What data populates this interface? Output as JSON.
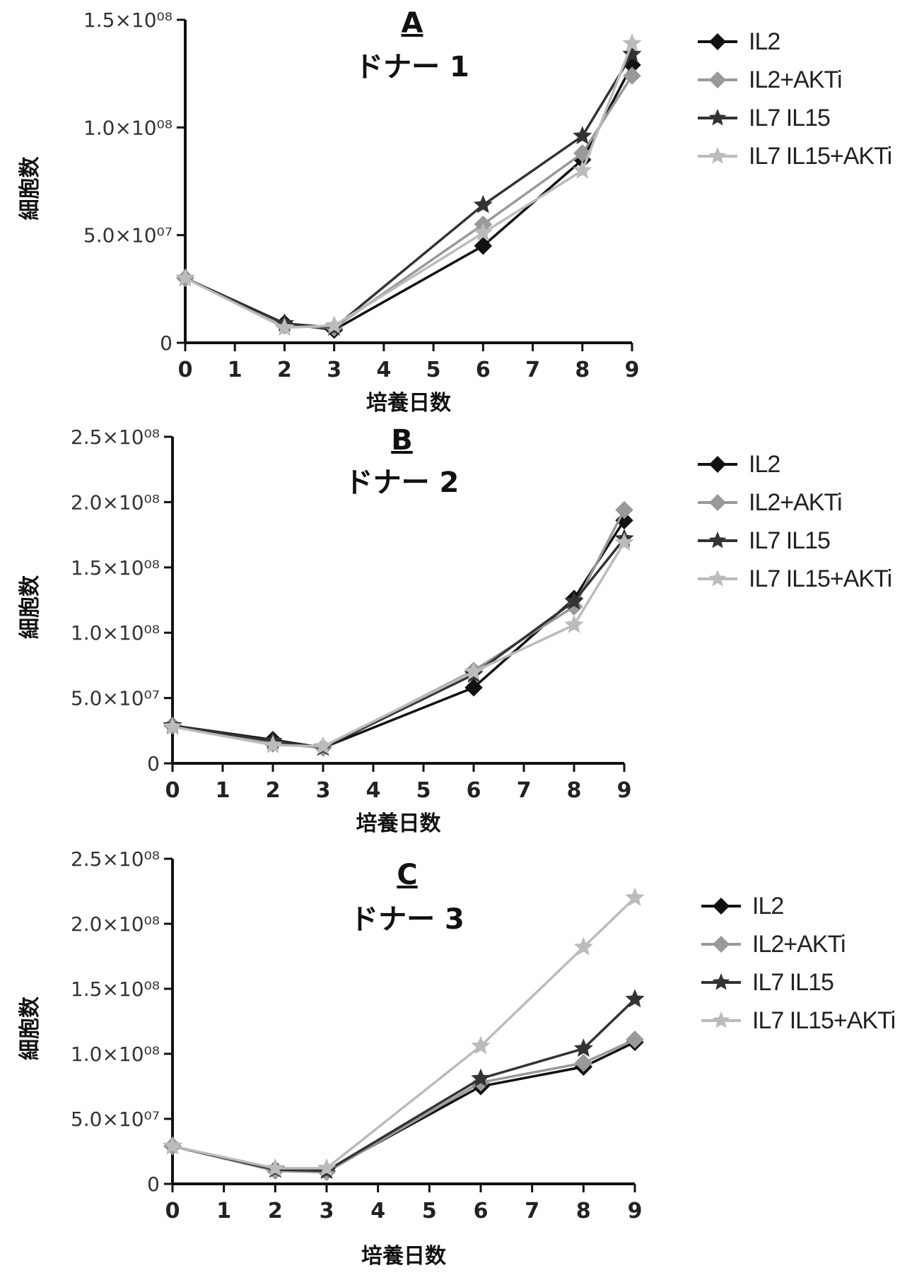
{
  "chart_data": [
    {
      "type": "line",
      "panel": "A",
      "title": "ドナー 1",
      "xlabel": "培養日数",
      "ylabel": "細胞数",
      "x": [
        0,
        2,
        3,
        6,
        8,
        9
      ],
      "xticks": [
        "0",
        "1",
        "2",
        "3",
        "4",
        "5",
        "6",
        "7",
        "8",
        "9"
      ],
      "ylim": [
        0,
        150000000
      ],
      "yticks": [
        {
          "value": 0,
          "label": "0"
        },
        {
          "value": 50000000,
          "label": "5.0×10⁰⁷"
        },
        {
          "value": 100000000,
          "label": "1.0×10⁰⁸"
        },
        {
          "value": 150000000,
          "label": "1.5×10⁰⁸"
        }
      ],
      "series": [
        {
          "name": "IL2",
          "color": "#111111",
          "marker": "diamond",
          "values": [
            30000000,
            9000000,
            6000000,
            45000000,
            85000000,
            129000000
          ]
        },
        {
          "name": "IL2+AKTi",
          "color": "#999999",
          "marker": "diamond",
          "values": [
            30000000,
            8000000,
            7000000,
            55000000,
            88000000,
            124000000
          ]
        },
        {
          "name": "IL7 IL15",
          "color": "#333333",
          "marker": "star",
          "values": [
            30000000,
            9000000,
            7000000,
            64000000,
            96000000,
            134000000
          ]
        },
        {
          "name": "IL7 IL15+AKTi",
          "color": "#bbbbbb",
          "marker": "star",
          "values": [
            30000000,
            7000000,
            8000000,
            51000000,
            80000000,
            139000000
          ]
        }
      ]
    },
    {
      "type": "line",
      "panel": "B",
      "title": "ドナー 2",
      "xlabel": "培養日数",
      "ylabel": "細胞数",
      "x": [
        0,
        2,
        3,
        6,
        8,
        9
      ],
      "xticks": [
        "0",
        "1",
        "2",
        "3",
        "4",
        "5",
        "6",
        "7",
        "8",
        "9"
      ],
      "ylim": [
        0,
        250000000
      ],
      "yticks": [
        {
          "value": 0,
          "label": "0"
        },
        {
          "value": 50000000,
          "label": "5.0×10⁰⁷"
        },
        {
          "value": 100000000,
          "label": "1.0×10⁰⁸"
        },
        {
          "value": 150000000,
          "label": "1.5×10⁰⁸"
        },
        {
          "value": 200000000,
          "label": "2.0×10⁰⁸"
        },
        {
          "value": 250000000,
          "label": "2.5×10⁰⁸"
        }
      ],
      "series": [
        {
          "name": "IL2",
          "color": "#111111",
          "marker": "diamond",
          "values": [
            29000000,
            18000000,
            12000000,
            58000000,
            126000000,
            186000000
          ]
        },
        {
          "name": "IL2+AKTi",
          "color": "#999999",
          "marker": "diamond",
          "values": [
            29000000,
            15000000,
            12000000,
            71000000,
            120000000,
            194000000
          ]
        },
        {
          "name": "IL7 IL15",
          "color": "#333333",
          "marker": "star",
          "values": [
            29000000,
            17000000,
            12000000,
            68000000,
            124000000,
            172000000
          ]
        },
        {
          "name": "IL7 IL15+AKTi",
          "color": "#bbbbbb",
          "marker": "star",
          "values": [
            28000000,
            14000000,
            13000000,
            70000000,
            106000000,
            169000000
          ]
        }
      ]
    },
    {
      "type": "line",
      "panel": "C",
      "title": "ドナー 3",
      "xlabel": "培養日数",
      "ylabel": "細胞数",
      "x": [
        0,
        2,
        3,
        6,
        8,
        9
      ],
      "xticks": [
        "0",
        "1",
        "2",
        "3",
        "4",
        "5",
        "6",
        "7",
        "8",
        "9"
      ],
      "ylim": [
        0,
        250000000
      ],
      "yticks": [
        {
          "value": 0,
          "label": "0"
        },
        {
          "value": 50000000,
          "label": "5.0×10⁰⁷"
        },
        {
          "value": 100000000,
          "label": "1.0×10⁰⁸"
        },
        {
          "value": 150000000,
          "label": "1.5×10⁰⁸"
        },
        {
          "value": 200000000,
          "label": "2.0×10⁰⁸"
        },
        {
          "value": 250000000,
          "label": "2.5×10⁰⁸"
        }
      ],
      "series": [
        {
          "name": "IL2",
          "color": "#111111",
          "marker": "diamond",
          "values": [
            29000000,
            11000000,
            10000000,
            75000000,
            90000000,
            109000000
          ]
        },
        {
          "name": "IL2+AKTi",
          "color": "#999999",
          "marker": "diamond",
          "values": [
            29000000,
            10000000,
            9000000,
            78000000,
            93000000,
            111000000
          ]
        },
        {
          "name": "IL7 IL15",
          "color": "#333333",
          "marker": "star",
          "values": [
            29000000,
            11000000,
            10000000,
            81000000,
            104000000,
            142000000
          ]
        },
        {
          "name": "IL7 IL15+AKTi",
          "color": "#bbbbbb",
          "marker": "star",
          "values": [
            29000000,
            12000000,
            12000000,
            106000000,
            182000000,
            220000000
          ]
        }
      ]
    }
  ]
}
